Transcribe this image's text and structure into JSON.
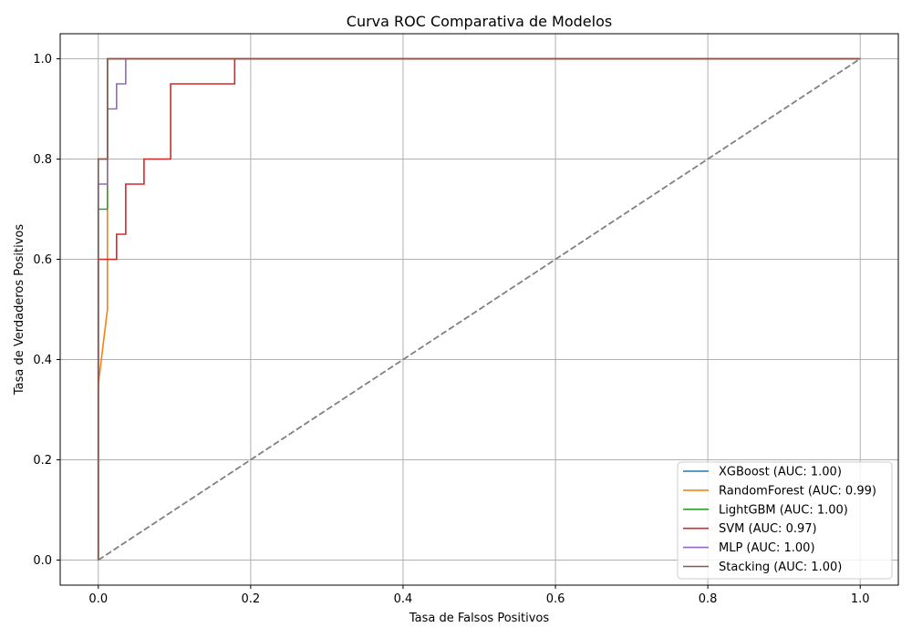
{
  "chart_data": {
    "type": "line",
    "title": "Curva ROC Comparativa de Modelos",
    "xlabel": "Tasa de Falsos Positivos",
    "ylabel": "Tasa de Verdaderos Positivos",
    "xlim": [
      -0.05,
      1.05
    ],
    "ylim": [
      -0.05,
      1.05
    ],
    "xticks": [
      0.0,
      0.2,
      0.4,
      0.6,
      0.8,
      1.0
    ],
    "yticks": [
      0.0,
      0.2,
      0.4,
      0.6,
      0.8,
      1.0
    ],
    "xtick_labels": [
      "0.0",
      "0.2",
      "0.4",
      "0.6",
      "0.8",
      "1.0"
    ],
    "ytick_labels": [
      "0.0",
      "0.2",
      "0.4",
      "0.6",
      "0.8",
      "1.0"
    ],
    "grid": true,
    "legend_position": "lower-right",
    "series": [
      {
        "name": "XGBoost (AUC: 1.00)",
        "color": "#1f77b4",
        "x": [
          0,
          0,
          0,
          0.012,
          0.012,
          1.0
        ],
        "y": [
          0,
          0.35,
          0.8,
          0.8,
          1.0,
          1.0
        ]
      },
      {
        "name": "RandomForest (AUC: 0.99)",
        "color": "#ff7f0e",
        "x": [
          0,
          0,
          0.012,
          0.012,
          1.0
        ],
        "y": [
          0,
          0.35,
          0.5,
          1.0,
          1.0
        ]
      },
      {
        "name": "LightGBM (AUC: 1.00)",
        "color": "#2ca02c",
        "x": [
          0,
          0,
          0.012,
          0.012,
          1.0
        ],
        "y": [
          0,
          0.7,
          0.7,
          1.0,
          1.0
        ]
      },
      {
        "name": "SVM (AUC: 0.97)",
        "color": "#d62728",
        "x": [
          0,
          0,
          0.024,
          0.024,
          0.036,
          0.036,
          0.06,
          0.06,
          0.095,
          0.095,
          0.179,
          0.179,
          1.0
        ],
        "y": [
          0,
          0.6,
          0.6,
          0.65,
          0.65,
          0.75,
          0.75,
          0.8,
          0.8,
          0.95,
          0.95,
          1.0,
          1.0
        ]
      },
      {
        "name": "MLP (AUC: 1.00)",
        "color": "#9467bd",
        "x": [
          0,
          0,
          0.012,
          0.012,
          0.024,
          0.024,
          0.036,
          0.036,
          1.0
        ],
        "y": [
          0,
          0.75,
          0.75,
          0.9,
          0.9,
          0.95,
          0.95,
          1.0,
          1.0
        ]
      },
      {
        "name": "Stacking (AUC: 1.00)",
        "color": "#8c564b",
        "x": [
          0,
          0,
          0.012,
          0.012,
          1.0
        ],
        "y": [
          0,
          0.8,
          0.8,
          1.0,
          1.0
        ]
      }
    ],
    "reference_line": {
      "color": "#808080",
      "style": "dashed",
      "x": [
        0,
        1
      ],
      "y": [
        0,
        1
      ]
    }
  }
}
